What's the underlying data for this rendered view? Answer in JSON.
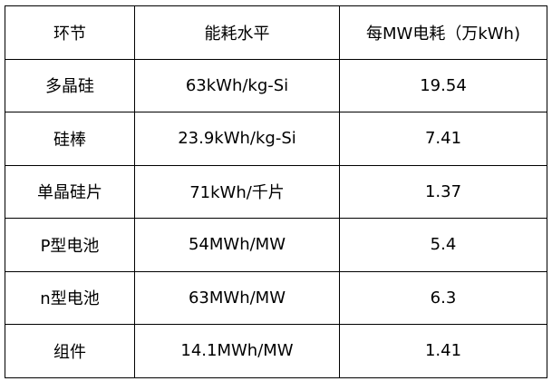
{
  "table": {
    "headers": [
      "环节",
      "能耗水平",
      "每MW电耗（万kWh)"
    ],
    "rows": [
      [
        "多晶硅",
        "63kWh/kg-Si",
        "19.54"
      ],
      [
        "硅棒",
        "23.9kWh/kg-Si",
        "7.41"
      ],
      [
        "单晶硅片",
        "71kWh/千片",
        "1.37"
      ],
      [
        "P型电池",
        "54MWh/MW",
        "5.4"
      ],
      [
        "n型电池",
        "63MWh/MW",
        "6.3"
      ],
      [
        "组件",
        "14.1MWh/MW",
        "1.41"
      ]
    ]
  }
}
